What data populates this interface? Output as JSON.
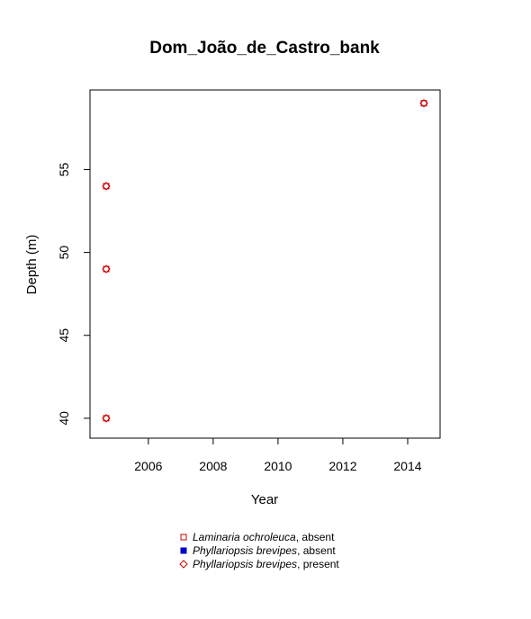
{
  "chart_data": {
    "type": "scatter",
    "title": "Dom_João_de_Castro_bank",
    "xlabel": "Year",
    "ylabel": "Depth (m)",
    "xlim": [
      2004.2,
      2015.0
    ],
    "ylim": [
      38.8,
      59.8
    ],
    "xticks": [
      2006,
      2008,
      2010,
      2012,
      2014
    ],
    "yticks": [
      40,
      45,
      50,
      55
    ],
    "grid": false,
    "legend_position": "bottom",
    "series": [
      {
        "name": "Laminaria ochroleuca, absent",
        "name_italic": "Laminaria ochroleuca",
        "name_rest": ", absent",
        "marker": "open-square",
        "color": "#cc0000",
        "points": [
          {
            "x": 2004.7,
            "y": 40
          },
          {
            "x": 2004.7,
            "y": 49
          },
          {
            "x": 2004.7,
            "y": 54
          },
          {
            "x": 2014.5,
            "y": 59
          }
        ]
      },
      {
        "name": "Phyllariopsis brevipes, absent",
        "name_italic": "Phyllariopsis brevipes",
        "name_rest": ", absent",
        "marker": "filled-square",
        "color": "#0000cc",
        "points": []
      },
      {
        "name": "Phyllariopsis brevipes, present",
        "name_italic": "Phyllariopsis brevipes",
        "name_rest": ", present",
        "marker": "open-diamond",
        "color": "#cc0000",
        "points": [
          {
            "x": 2004.7,
            "y": 40
          },
          {
            "x": 2004.7,
            "y": 49
          },
          {
            "x": 2004.7,
            "y": 54
          },
          {
            "x": 2014.5,
            "y": 59
          }
        ]
      }
    ]
  }
}
